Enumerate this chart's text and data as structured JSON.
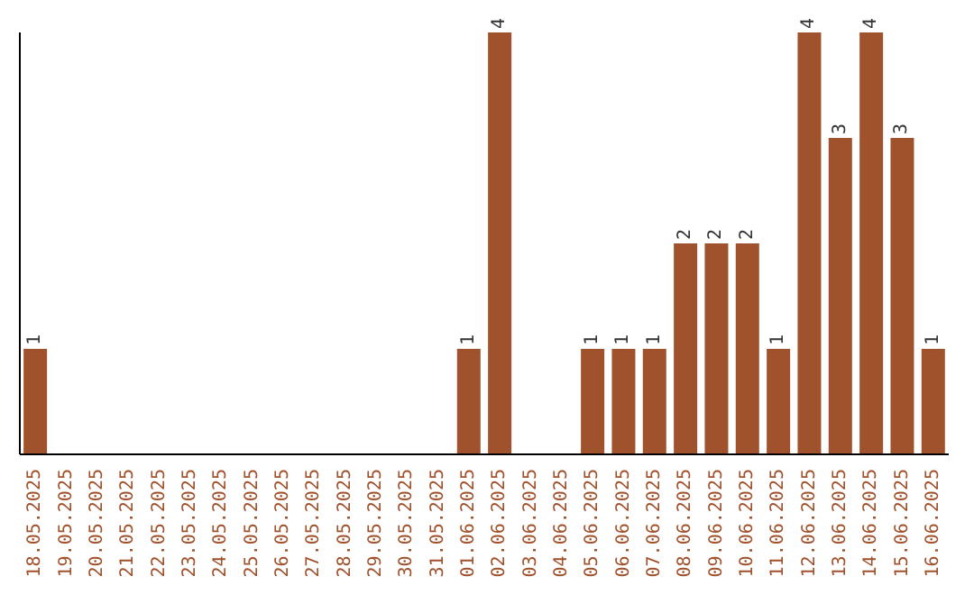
{
  "chart_data": {
    "type": "bar",
    "categories": [
      "18.05.2025",
      "19.05.2025",
      "20.05.2025",
      "21.05.2025",
      "22.05.2025",
      "23.05.2025",
      "24.05.2025",
      "25.05.2025",
      "26.05.2025",
      "27.05.2025",
      "28.05.2025",
      "29.05.2025",
      "30.05.2025",
      "31.05.2025",
      "01.06.2025",
      "02.06.2025",
      "03.06.2025",
      "04.06.2025",
      "05.06.2025",
      "06.06.2025",
      "07.06.2025",
      "08.06.2025",
      "09.06.2025",
      "10.06.2025",
      "11.06.2025",
      "12.06.2025",
      "13.06.2025",
      "14.06.2025",
      "15.06.2025",
      "16.06.2025"
    ],
    "values": [
      1,
      0,
      0,
      0,
      0,
      0,
      0,
      0,
      0,
      0,
      0,
      0,
      0,
      0,
      1,
      4,
      0,
      0,
      1,
      1,
      1,
      2,
      2,
      2,
      1,
      4,
      3,
      4,
      3,
      1
    ],
    "value_labels": [
      "1",
      null,
      null,
      null,
      null,
      null,
      null,
      null,
      null,
      null,
      null,
      null,
      null,
      null,
      "1",
      "4",
      null,
      null,
      "1",
      "1",
      "1",
      "2",
      "2",
      "2",
      "1",
      "4",
      "3",
      "4",
      "3",
      "1"
    ],
    "color": "#a0522d",
    "grid": false,
    "legend": false
  }
}
